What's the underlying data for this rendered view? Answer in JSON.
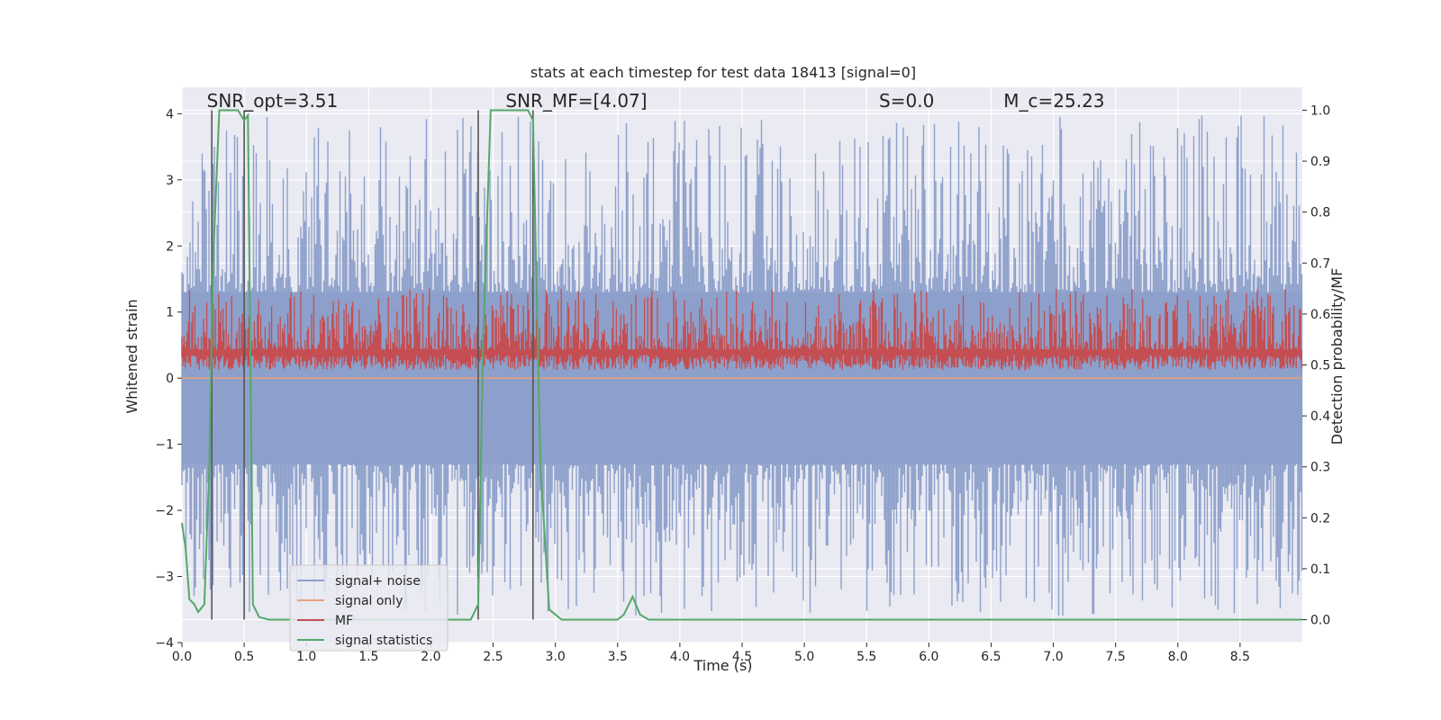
{
  "chart_data": {
    "type": "line",
    "title": "stats at each timestep for test data 18413 [signal=0]",
    "xlabel": "Time (s)",
    "ylabel_left": "Whitened strain",
    "ylabel_right": "Detection probability/MF",
    "xlim": [
      0.0,
      9.0
    ],
    "ylim_left": [
      -4.0,
      4.4
    ],
    "ylim_right": [
      -0.045,
      1.045
    ],
    "x_ticks": [
      "0.0",
      "0.5",
      "1.0",
      "1.5",
      "2.0",
      "2.5",
      "3.0",
      "3.5",
      "4.0",
      "4.5",
      "5.0",
      "5.5",
      "6.0",
      "6.5",
      "7.0",
      "7.5",
      "8.0",
      "8.5"
    ],
    "x_tick_values": [
      0.0,
      0.5,
      1.0,
      1.5,
      2.0,
      2.5,
      3.0,
      3.5,
      4.0,
      4.5,
      5.0,
      5.5,
      6.0,
      6.5,
      7.0,
      7.5,
      8.0,
      8.5
    ],
    "y_ticks_left": [
      "4",
      "3",
      "2",
      "1",
      "0",
      "−1",
      "−2",
      "−3",
      "−4"
    ],
    "y_tick_values_left": [
      4,
      3,
      2,
      1,
      0,
      -1,
      -2,
      -3,
      -4
    ],
    "y_ticks_right": [
      "1.0",
      "0.9",
      "0.8",
      "0.7",
      "0.6",
      "0.5",
      "0.4",
      "0.3",
      "0.2",
      "0.1",
      "0.0"
    ],
    "y_tick_values_right": [
      1.0,
      0.9,
      0.8,
      0.7,
      0.6,
      0.5,
      0.4,
      0.3,
      0.2,
      0.1,
      0.0
    ],
    "grid": true,
    "annotations": [
      {
        "text": "SNR_opt=3.51",
        "x": 0.2,
        "y": 4.1
      },
      {
        "text": "SNR_MF=[4.07]",
        "x": 2.6,
        "y": 4.1
      },
      {
        "text": "S=0.0",
        "x": 5.6,
        "y": 4.1
      },
      {
        "text": "M_c=25.23",
        "x": 6.6,
        "y": 4.1
      }
    ],
    "legend": {
      "placement": "lower-left",
      "entries": [
        "signal+ noise",
        "signal only",
        "MF",
        "signal statistics"
      ]
    },
    "series": [
      {
        "name": "signal+ noise",
        "axis": "left",
        "color": "#8da0cb",
        "envelope_pos": 1.3,
        "envelope_neg": -1.3,
        "peak_max": 4.0,
        "peak_min": -3.6
      },
      {
        "name": "signal only",
        "axis": "left",
        "color": "#e8a07c",
        "values_const": 0.0
      },
      {
        "name": "MF",
        "axis": "right",
        "color": "#c44e52",
        "base": 0.5,
        "spread_max": 0.62
      },
      {
        "name": "signal statistics",
        "axis": "right",
        "color": "#55a868",
        "x": [
          0.0,
          0.03,
          0.06,
          0.1,
          0.13,
          0.18,
          0.22,
          0.25,
          0.3,
          0.4,
          0.45,
          0.5,
          0.53,
          0.57,
          0.62,
          0.7,
          1.0,
          1.5,
          2.0,
          2.2,
          2.32,
          2.38,
          2.42,
          2.48,
          2.55,
          2.7,
          2.78,
          2.82,
          2.88,
          2.95,
          3.05,
          3.2,
          3.4,
          3.5,
          3.55,
          3.62,
          3.68,
          3.75,
          3.85,
          4.5,
          6.0,
          7.5,
          9.0
        ],
        "y": [
          0.19,
          0.14,
          0.04,
          0.03,
          0.015,
          0.03,
          0.3,
          0.7,
          1.0,
          1.0,
          1.0,
          0.98,
          0.99,
          0.03,
          0.005,
          0.0,
          0.0,
          0.0,
          0.0,
          0.0,
          0.0,
          0.03,
          0.55,
          1.0,
          1.0,
          1.0,
          1.0,
          0.98,
          0.3,
          0.02,
          0.0,
          0.0,
          0.0,
          0.0,
          0.01,
          0.045,
          0.01,
          0.0,
          0.0,
          0.0,
          0.0,
          0.0,
          0.0
        ]
      }
    ],
    "vlines_x": [
      0.24,
      0.5,
      2.38,
      2.82
    ]
  }
}
